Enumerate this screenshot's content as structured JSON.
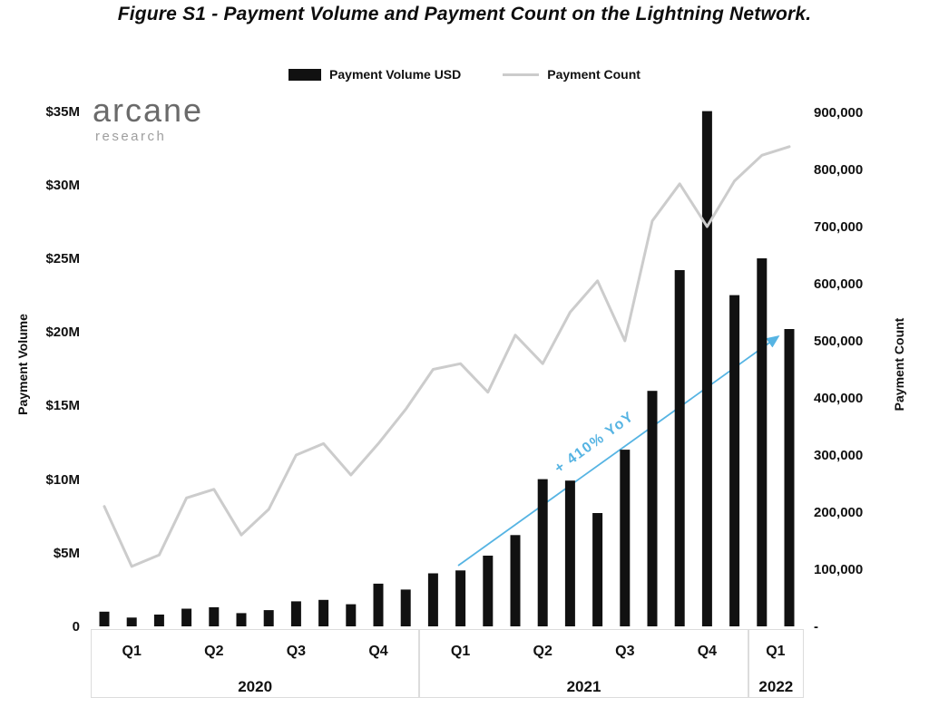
{
  "title": "Figure S1 - Payment Volume and Payment Count on the Lightning Network.",
  "legend": {
    "volume_label": "Payment Volume USD",
    "count_label": "Payment Count"
  },
  "logo": {
    "name": "arcane",
    "subtitle": "research"
  },
  "annotation": {
    "label": "+ 410% YoY"
  },
  "colors": {
    "bar": "#111111",
    "line": "#cccccc",
    "accent": "#56b4e3",
    "logo_gray": "#6a6a6a",
    "logo_light": "#9e9e9e",
    "box_border": "#dcdcdc"
  },
  "axes": {
    "left_title": "Payment Volume",
    "right_title": "Payment Count",
    "left_ticks": [
      {
        "label": "$35M",
        "value_millions": 35
      },
      {
        "label": "$30M",
        "value_millions": 30
      },
      {
        "label": "$25M",
        "value_millions": 25
      },
      {
        "label": "$20M",
        "value_millions": 20
      },
      {
        "label": "$15M",
        "value_millions": 15
      },
      {
        "label": "$10M",
        "value_millions": 10
      },
      {
        "label": "$5M",
        "value_millions": 5
      },
      {
        "label": "0",
        "value_millions": 0
      }
    ],
    "right_ticks": [
      {
        "label": "900,000",
        "value": 900000
      },
      {
        "label": "800,000",
        "value": 800000
      },
      {
        "label": "700,000",
        "value": 700000
      },
      {
        "label": "600,000",
        "value": 600000
      },
      {
        "label": "500,000",
        "value": 500000
      },
      {
        "label": "400,000",
        "value": 400000
      },
      {
        "label": "300,000",
        "value": 300000
      },
      {
        "label": "200,000",
        "value": 200000
      },
      {
        "label": "100,000",
        "value": 100000
      },
      {
        "label": "-",
        "value": 0
      }
    ]
  },
  "chart_data": {
    "type": "bar+line (dual axis)",
    "title": "Figure S1 - Payment Volume and Payment Count on the Lightning Network.",
    "left_axis_label": "Payment Volume",
    "right_axis_label": "Payment Count",
    "left_axis_range_usd": [
      0,
      35000000
    ],
    "right_axis_range": [
      0,
      900000
    ],
    "legend_position": "top-center",
    "grid": false,
    "months": [
      "Jan 2020",
      "Feb 2020",
      "Mar 2020",
      "Apr 2020",
      "May 2020",
      "Jun 2020",
      "Jul 2020",
      "Aug 2020",
      "Sep 2020",
      "Oct 2020",
      "Nov 2020",
      "Dec 2020",
      "Jan 2021",
      "Feb 2021",
      "Mar 2021",
      "Apr 2021",
      "May 2021",
      "Jun 2021",
      "Jul 2021",
      "Aug 2021",
      "Sep 2021",
      "Oct 2021",
      "Nov 2021",
      "Dec 2021",
      "Jan 2022",
      "Feb 2022"
    ],
    "series": [
      {
        "name": "Payment Volume USD",
        "type": "bar",
        "axis": "left",
        "unit": "USD millions",
        "values_millions": [
          1.0,
          0.6,
          0.8,
          1.2,
          1.3,
          0.9,
          1.1,
          1.7,
          1.8,
          1.5,
          2.9,
          2.5,
          3.6,
          3.8,
          4.8,
          6.2,
          10.0,
          9.9,
          7.7,
          12.0,
          16.0,
          24.2,
          35.0,
          22.5,
          25.0,
          20.2
        ]
      },
      {
        "name": "Payment Count",
        "type": "line",
        "axis": "right",
        "unit": "payments",
        "values": [
          210000,
          105000,
          125000,
          225000,
          240000,
          160000,
          205000,
          300000,
          320000,
          265000,
          320000,
          380000,
          450000,
          460000,
          410000,
          510000,
          460000,
          550000,
          605000,
          500000,
          710000,
          775000,
          700000,
          780000,
          825000,
          840000
        ]
      }
    ],
    "x_axis_years": [
      {
        "label": "2020",
        "quarters": [
          "Q1",
          "Q2",
          "Q3",
          "Q4"
        ],
        "n_months": 12
      },
      {
        "label": "2021",
        "quarters": [
          "Q1",
          "Q2",
          "Q3",
          "Q4"
        ],
        "n_months": 12
      },
      {
        "label": "2022",
        "quarters": [
          "Q1"
        ],
        "n_months": 2
      }
    ],
    "annotation": {
      "text": "+ 410% YoY",
      "from": "Q1 2021 bars",
      "to": "Q1 2022 bar"
    }
  }
}
